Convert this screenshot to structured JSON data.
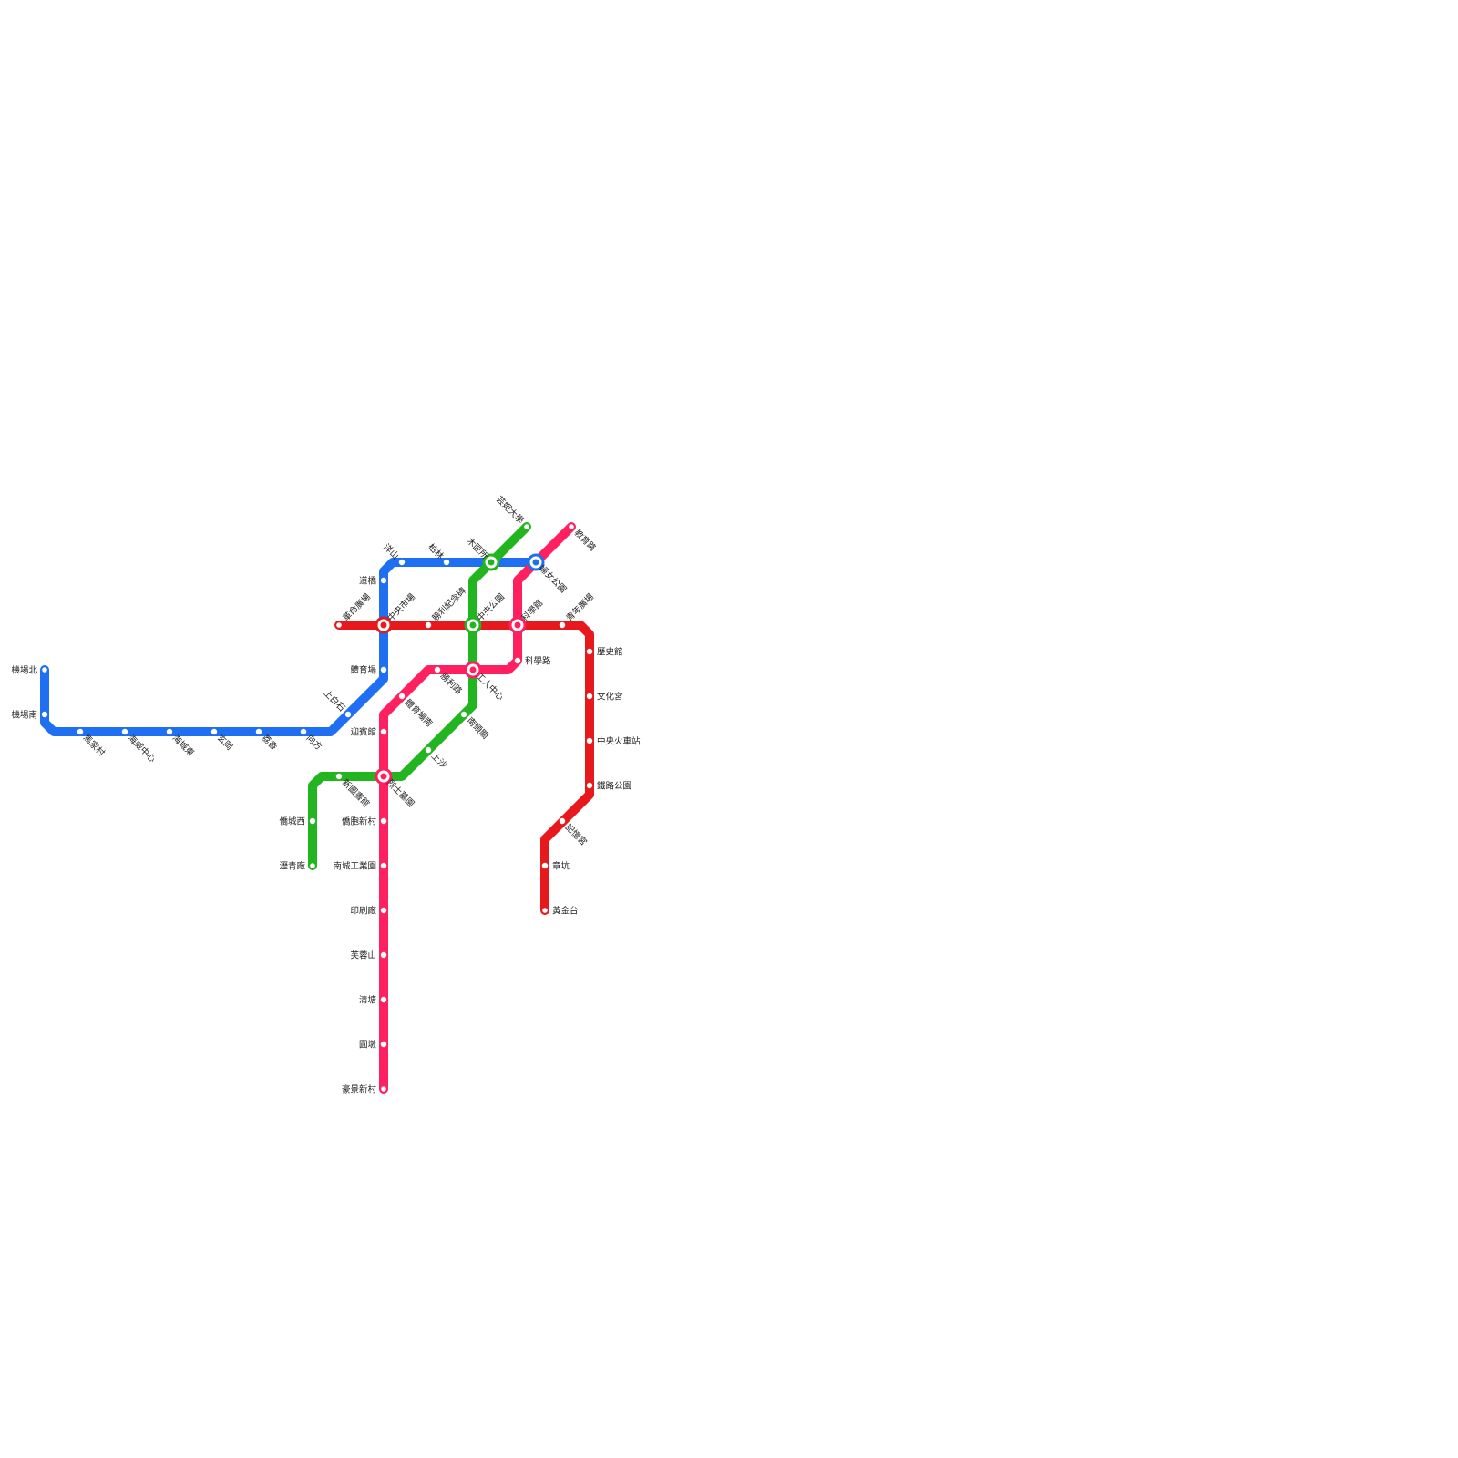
{
  "colors": {
    "blue": "#1e6ff2",
    "red": "#e8191c",
    "pink": "#ff2060",
    "green": "#22b520"
  },
  "lines": [
    {
      "id": "blue",
      "color": "#1e6ff2",
      "stations": [
        "機場北",
        "機場南",
        "馬家村",
        "海威中心",
        "海城東",
        "玄岡",
        "荔香",
        "向方",
        "上白石",
        "體育場",
        "中央市場",
        "道橋",
        "洋山",
        "柏林",
        "木匠所",
        "婦女公園"
      ]
    },
    {
      "id": "red",
      "color": "#e8191c",
      "stations": [
        "革命廣場",
        "中央市場",
        "勝利紀念碑",
        "中央公園",
        "科學館",
        "青年廣場",
        "歷史館",
        "文化宮",
        "中央火車站",
        "鐵路公園",
        "記憶宮",
        "章坑",
        "黃金台"
      ]
    },
    {
      "id": "pink",
      "color": "#ff2060",
      "stations": [
        "教育路",
        "婦女公園",
        "科學館",
        "科學路",
        "工人中心",
        "勝利路",
        "體育場南",
        "迎賓館",
        "烈士墓園",
        "僑胞新村",
        "南城工業園",
        "印刷廠",
        "芙蓉山",
        "清塘",
        "圓墩",
        "豪景新村"
      ]
    },
    {
      "id": "green",
      "color": "#22b520",
      "stations": [
        "芸妮大學",
        "木匠所",
        "中央公園",
        "工人中心",
        "南頭關",
        "上沙",
        "烈士墓園",
        "新圖書館",
        "僑城西",
        "瀝青廠"
      ]
    }
  ]
}
